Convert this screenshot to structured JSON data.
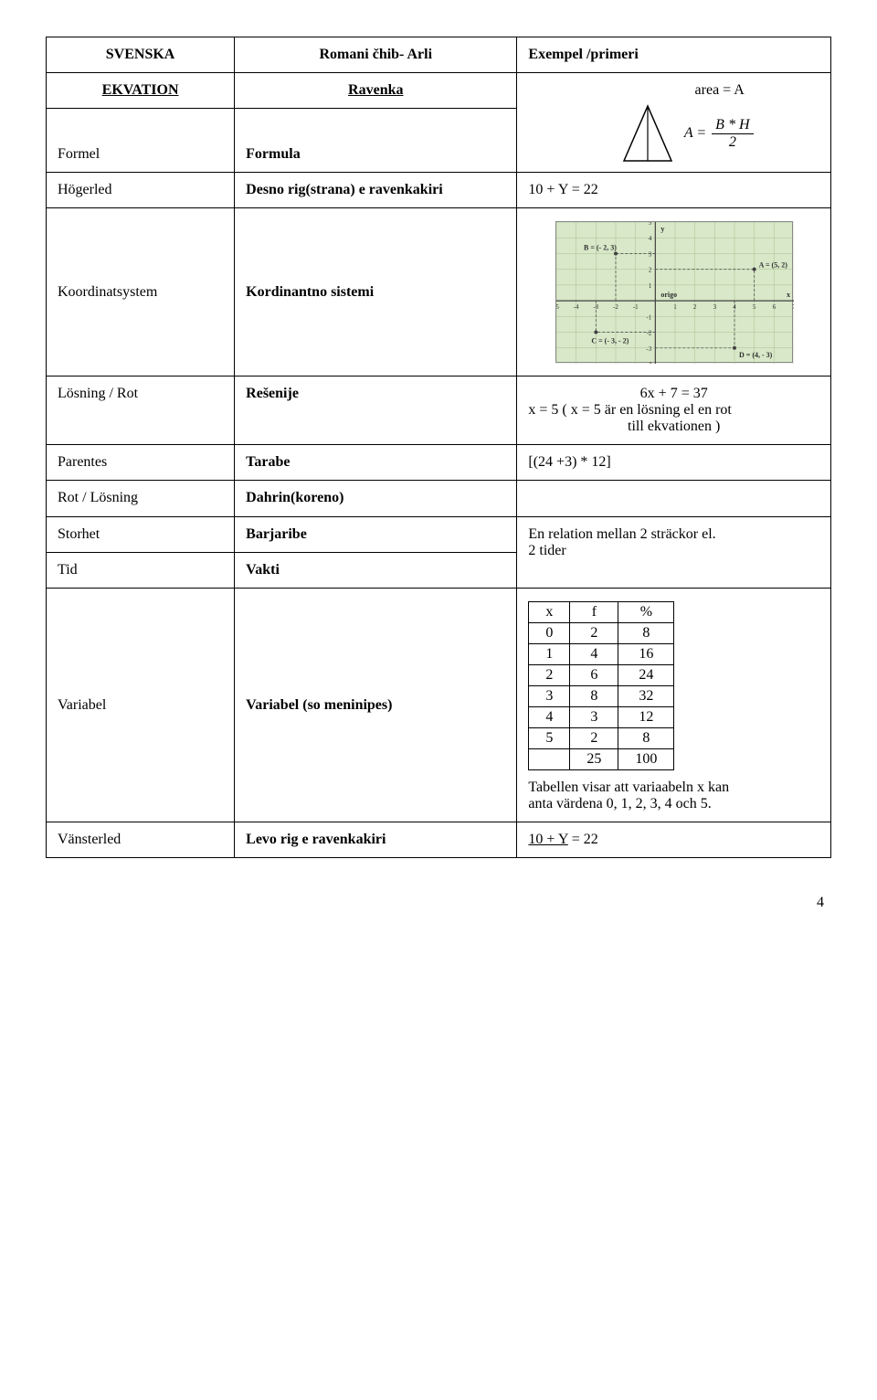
{
  "header": {
    "svenska": "SVENSKA",
    "romani": "Romani čhib- Arli",
    "exempel": "Exempel /primeri"
  },
  "ekvation_row": {
    "sv": "EKVATION",
    "ro": "Ravenka"
  },
  "formel": {
    "sv": "Formel",
    "ro": "Formula",
    "area_label": "area = A",
    "eq_left": "A =",
    "eq_num": "B * H",
    "eq_den": "2"
  },
  "hogerled": {
    "sv": "Högerled",
    "ro": "Desno rig(strana) e ravenkakiri",
    "ex": "10 + Y = 22"
  },
  "koordinat": {
    "sv": "Koordinatsystem",
    "ro": "Kordinantno sistemi"
  },
  "losning": {
    "sv": "Lösning / Rot",
    "ro": "Rešenije",
    "ex_line1": "6x + 7 = 37",
    "ex_line2": "x = 5  ( x = 5 är en lösning el en rot",
    "ex_line3": "till ekvationen )"
  },
  "parentes": {
    "sv": "Parentes",
    "ro": "Tarabe",
    "ex": "[(24 +3) * 12]"
  },
  "rot_losning": {
    "sv": "Rot / Lösning",
    "ro": "Dahrin(koreno)"
  },
  "storhet": {
    "sv": "Storhet",
    "ro": "Barjaribe",
    "ex_line1": "En relation mellan 2 sträckor el.",
    "ex_line2": "2 tider"
  },
  "tid": {
    "sv": "Tid",
    "ro": "Vakti"
  },
  "variabel": {
    "sv": "Variabel",
    "ro": "Variabel  (so meninipes)",
    "note_line1": "Tabellen visar att variaabeln x kan",
    "note_line2": "anta värdena 0, 1, 2, 3, 4 och 5.",
    "table": {
      "headers": [
        "x",
        "f",
        "%"
      ],
      "rows": [
        [
          "0",
          "2",
          "8"
        ],
        [
          "1",
          "4",
          "16"
        ],
        [
          "2",
          "6",
          "24"
        ],
        [
          "3",
          "8",
          "32"
        ],
        [
          "4",
          "3",
          "12"
        ],
        [
          "5",
          "2",
          "8"
        ],
        [
          "",
          "25",
          "100"
        ]
      ]
    }
  },
  "vansterled": {
    "sv": "Vänsterled",
    "ro": "Levo rig e ravenkakiri",
    "ex_pre": "10 + Y",
    "ex_post": " = 22"
  },
  "page_number": "4",
  "coord_system": {
    "bg_color": "#d8e8c8",
    "grid_color": "#a8c090",
    "axis_color": "#404040",
    "label_color": "#303030",
    "dash_color": "#505050",
    "font_size": 7,
    "xlim": [
      -5,
      7
    ],
    "ylim": [
      -4,
      5
    ],
    "labels": {
      "origo": "origo",
      "y": "y",
      "x": "x",
      "A": "A = (5, 2)",
      "B": "B = (- 2, 3)",
      "C": "C = (- 3, - 2)",
      "D": "D = (4, - 3)"
    },
    "points": {
      "A": [
        5,
        2
      ],
      "B": [
        -2,
        3
      ],
      "C": [
        -3,
        -2
      ],
      "D": [
        4,
        -3
      ]
    }
  }
}
